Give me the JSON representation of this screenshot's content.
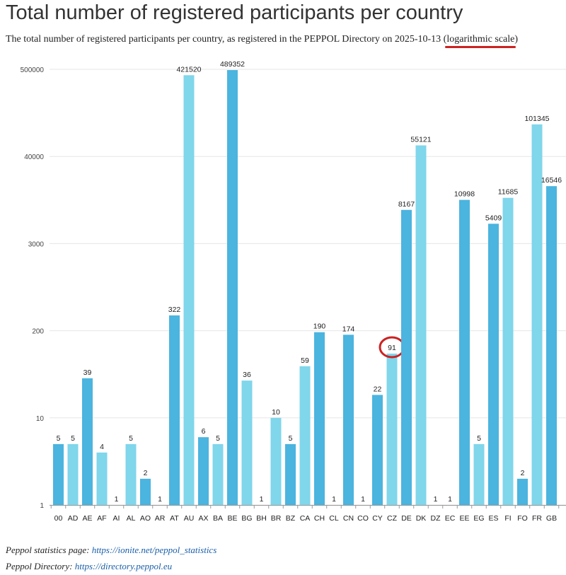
{
  "title": "Total number of registered participants per country",
  "subtitle": {
    "text": "The total number of registered participants per country, as registered in the PEPPOL Directory on 2025-10-13 (",
    "highlight": "logarithmic scale",
    "close": ")"
  },
  "footer": {
    "stats_label": "Peppol statistics page:",
    "stats_link": "https://ionite.net/peppol_statistics",
    "directory_label": "Peppol Directory:",
    "directory_link": "https://directory.peppol.eu"
  },
  "colors": {
    "bar_dark": "#4bb4df",
    "bar_light": "#80d6eb",
    "highlight_circle": "#cc2222",
    "grid": "#e6e6e6"
  },
  "chart_data": {
    "type": "bar",
    "scale": "log",
    "grid": true,
    "ytick_labels": [
      "1",
      "10",
      "200",
      "3000",
      "40000",
      "500000"
    ],
    "categories": [
      "00",
      "AD",
      "AE",
      "AF",
      "AI",
      "AL",
      "AO",
      "AR",
      "AT",
      "AU",
      "AX",
      "BA",
      "BE",
      "BG",
      "BH",
      "BR",
      "BZ",
      "CA",
      "CH",
      "CL",
      "CN",
      "CO",
      "CY",
      "CZ",
      "DE",
      "DK",
      "DZ",
      "EC",
      "EE",
      "EG",
      "ES",
      "FI",
      "FO",
      "FR",
      "GB"
    ],
    "values": [
      5,
      5,
      39,
      4,
      1,
      5,
      2,
      1,
      322,
      421520,
      6,
      5,
      489352,
      36,
      1,
      10,
      5,
      59,
      190,
      1,
      174,
      1,
      22,
      91,
      8167,
      55121,
      1,
      1,
      10998,
      5,
      5409,
      11685,
      2,
      101345,
      16546
    ],
    "value_labels": [
      "5",
      "5",
      "39",
      "4",
      "1",
      "5",
      "2",
      "1",
      "322",
      "421520",
      "6",
      "5",
      "489352",
      "36",
      "1",
      "10",
      "5",
      "59",
      "190",
      "1",
      "174",
      "1",
      "22",
      "91",
      "8167",
      "55121",
      "1",
      "1",
      "10998",
      "5",
      "5409",
      "11685",
      "2",
      "101345",
      "16546"
    ],
    "shade": [
      "dark",
      "light",
      "dark",
      "light",
      "dark",
      "light",
      "dark",
      "light",
      "dark",
      "light",
      "dark",
      "light",
      "dark",
      "light",
      "dark",
      "light",
      "dark",
      "light",
      "dark",
      "light",
      "dark",
      "light",
      "dark",
      "light",
      "dark",
      "light",
      "dark",
      "light",
      "dark",
      "light",
      "dark",
      "light",
      "dark",
      "light",
      "dark"
    ],
    "highlighted": [
      "CZ"
    ]
  }
}
